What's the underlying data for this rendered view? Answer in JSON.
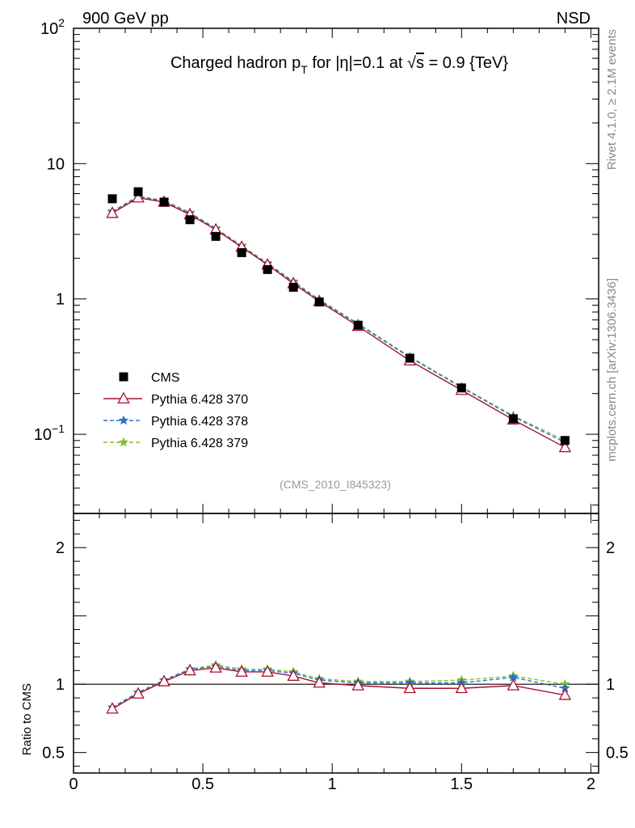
{
  "header": {
    "left": "900 GeV pp",
    "right": "NSD"
  },
  "title": {
    "prefix": "Charged hadron p",
    "sub": "T",
    "mid": " for |η|=0.1 at ",
    "sqrt_sym": "√",
    "sqrt_arg": "s",
    "suffix": " = 0.9 {TeV}"
  },
  "side_text": {
    "version": "Rivet 4.1.0, ≥ 2.1M events",
    "source": "mcplots.cern.ch [arXiv:1306.3436]"
  },
  "analysis_label": "(CMS_2010_I845323)",
  "legend": [
    {
      "label": "CMS",
      "marker": "filled-square",
      "color": "#000000"
    },
    {
      "label": "Pythia 6.428 370",
      "marker": "open-triangle",
      "color": "#a8102e"
    },
    {
      "label": "Pythia 6.428 378",
      "marker": "star",
      "color": "#2e72c8"
    },
    {
      "label": "Pythia 6.428 379",
      "marker": "star",
      "color": "#7fc22a"
    }
  ],
  "chart_data": {
    "type": "line",
    "main": {
      "yscale": "log",
      "ylim": [
        0.026,
        100
      ],
      "xlim": [
        0,
        2.03
      ],
      "yticks": [
        {
          "value": 100,
          "base": "10",
          "exp": "2"
        },
        {
          "value": 10,
          "base": "10",
          "exp": ""
        },
        {
          "value": 1,
          "base": "1",
          "exp": ""
        },
        {
          "value": 0.1,
          "base": "10",
          "exp": "−1"
        }
      ]
    },
    "ratio": {
      "ylabel": "Ratio to CMS",
      "ylim": [
        0.35,
        2.25
      ],
      "yticks": [
        {
          "value": 2,
          "label": "2"
        },
        {
          "value": 1,
          "label": "1"
        },
        {
          "value": 0.5,
          "label": "0.5"
        }
      ]
    },
    "xticks": [
      {
        "value": 0,
        "label": "0"
      },
      {
        "value": 0.5,
        "label": "0.5"
      },
      {
        "value": 1,
        "label": "1"
      },
      {
        "value": 1.5,
        "label": "1.5"
      },
      {
        "value": 2,
        "label": "2"
      }
    ],
    "x": [
      0.15,
      0.25,
      0.35,
      0.45,
      0.55,
      0.65,
      0.75,
      0.85,
      0.95,
      1.1,
      1.3,
      1.5,
      1.7,
      1.9
    ],
    "data": {
      "name": "CMS",
      "values": [
        5.5,
        6.2,
        5.2,
        3.85,
        2.9,
        2.2,
        1.65,
        1.22,
        0.95,
        0.64,
        0.365,
        0.22,
        0.13,
        0.09
      ]
    },
    "series": [
      {
        "name": "Pythia 6.428 370",
        "color": "#a8102e",
        "dash": "",
        "marker": "triangle",
        "values": [
          4.3,
          5.6,
          5.2,
          4.2,
          3.25,
          2.42,
          1.79,
          1.3,
          0.96,
          0.63,
          0.35,
          0.212,
          0.128,
          0.08
        ],
        "ratio": [
          0.82,
          0.93,
          1.02,
          1.1,
          1.12,
          1.09,
          1.09,
          1.06,
          1.01,
          0.99,
          0.97,
          0.97,
          0.99,
          0.92
        ]
      },
      {
        "name": "Pythia 6.428 378",
        "color": "#2e72c8",
        "dash": "5,3",
        "marker": "star",
        "values": [
          4.4,
          5.7,
          5.3,
          4.3,
          3.3,
          2.45,
          1.82,
          1.33,
          0.98,
          0.65,
          0.37,
          0.222,
          0.135,
          0.087
        ],
        "ratio": [
          0.83,
          0.94,
          1.03,
          1.11,
          1.13,
          1.1,
          1.1,
          1.08,
          1.03,
          1.01,
          1.01,
          1.01,
          1.05,
          0.97
        ]
      },
      {
        "name": "Pythia 6.428 379",
        "color": "#7fc22a",
        "dash": "5,3",
        "marker": "star",
        "values": [
          4.45,
          5.75,
          5.35,
          4.35,
          3.33,
          2.48,
          1.84,
          1.35,
          0.99,
          0.66,
          0.375,
          0.225,
          0.137,
          0.09
        ],
        "ratio": [
          0.83,
          0.94,
          1.03,
          1.11,
          1.14,
          1.11,
          1.11,
          1.09,
          1.04,
          1.02,
          1.02,
          1.03,
          1.06,
          1.0
        ]
      }
    ]
  }
}
